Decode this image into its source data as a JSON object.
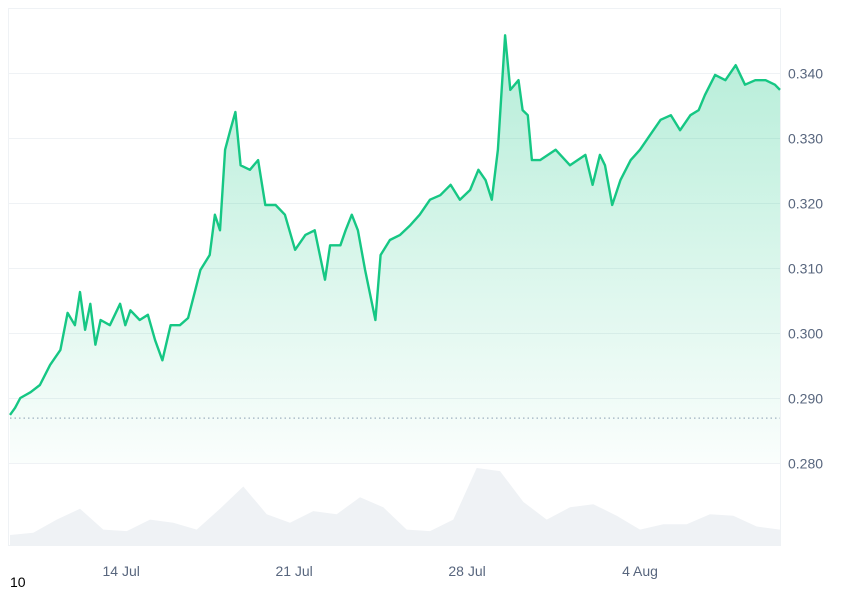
{
  "chart_data": {
    "type": "area",
    "title": "",
    "xlabel": "",
    "ylabel": "",
    "ylim": [
      0.28,
      0.35
    ],
    "xlim": [
      "Jul 9 12:00",
      "Aug 9 16:00"
    ],
    "grid": true,
    "y_ticks": [
      "0.340",
      "0.330",
      "0.320",
      "0.310",
      "0.300",
      "0.290",
      "0.280"
    ],
    "x_ticks": [
      "14 Jul",
      "21 Jul",
      "28 Jul",
      "4 Aug"
    ],
    "baseline_value": 0.2869,
    "colors": {
      "line": "#16c784",
      "fill": "#16c784",
      "volume": "#eff2f5",
      "grid": "#eff2f5",
      "baseline": "#a6b0c3"
    },
    "series": [
      {
        "x": [
          "Jul 9 12:00",
          "Jul 9 17:00",
          "Jul 9 22:00",
          "Jul 10 08:00",
          "Jul 10 17:00",
          "Jul 11 03:00",
          "Jul 11 13:00",
          "Jul 11 20:00",
          "Jul 12 03:00",
          "Jul 12 08:00",
          "Jul 12 13:00",
          "Jul 12 18:00",
          "Jul 12 23:00",
          "Jul 13 04:00",
          "Jul 13 13:00",
          "Jul 13 23:00",
          "Jul 14 04:00",
          "Jul 14 09:00",
          "Jul 14 18:00",
          "Jul 15 02:00",
          "Jul 15 09:00",
          "Jul 15 16:00",
          "Jul 16 00:00",
          "Jul 16 09:00",
          "Jul 16 17:00",
          "Jul 17 00:00",
          "Jul 17 05:00",
          "Jul 17 14:00",
          "Jul 17 19:00",
          "Jul 18 00:00",
          "Jul 18 05:00",
          "Jul 18 10:00",
          "Jul 18 15:00",
          "Jul 18 20:00",
          "Jul 19 05:00",
          "Jul 19 13:00",
          "Jul 19 20:00",
          "Jul 20 06:00",
          "Jul 20 15:00",
          "Jul 21 01:00",
          "Jul 21 11:00",
          "Jul 21 20:00",
          "Jul 22 06:00",
          "Jul 22 11:00",
          "Jul 22 21:00",
          "Jul 23 02:00",
          "Jul 23 08:00",
          "Jul 23 14:00",
          "Jul 23 21:00",
          "Jul 24 07:00",
          "Jul 24 12:00",
          "Jul 24 21:00",
          "Jul 25 07:00",
          "Jul 25 17:00",
          "Jul 26 02:00",
          "Jul 26 12:00",
          "Jul 26 22:00",
          "Jul 27 08:00",
          "Jul 27 17:00",
          "Jul 28 03:00",
          "Jul 28 11:00",
          "Jul 28 18:00",
          "Jul 29 00:00",
          "Jul 29 06:00",
          "Jul 29 13:00",
          "Jul 29 18:00",
          "Jul 30 02:00",
          "Jul 30 06:00",
          "Jul 30 11:00",
          "Jul 30 15:00",
          "Jul 30 23:00",
          "Jul 31 14:00",
          "Aug 1 04:00",
          "Aug 1 19:00",
          "Aug 2 02:00",
          "Aug 2 09:00",
          "Aug 2 14:00",
          "Aug 2 21:00",
          "Aug 3 05:00",
          "Aug 3 15:00",
          "Aug 4 00:00",
          "Aug 4 10:00",
          "Aug 4 20:00",
          "Aug 5 06:00",
          "Aug 5 15:00",
          "Aug 6 01:00",
          "Aug 6 09:00",
          "Aug 6 15:00",
          "Aug 7 01:00",
          "Aug 7 11:00",
          "Aug 7 21:00",
          "Aug 8 06:00",
          "Aug 8 16:00",
          "Aug 9 02:00",
          "Aug 9 11:00",
          "Aug 9 16:00"
        ],
        "y": [
          0.2874,
          0.2885,
          0.29,
          0.2909,
          0.292,
          0.2951,
          0.2974,
          0.3031,
          0.3012,
          0.3063,
          0.3005,
          0.3045,
          0.2982,
          0.302,
          0.3012,
          0.3045,
          0.3012,
          0.3035,
          0.302,
          0.3028,
          0.2989,
          0.2958,
          0.3012,
          0.3012,
          0.3023,
          0.3066,
          0.3097,
          0.312,
          0.3182,
          0.3158,
          0.3282,
          0.3312,
          0.334,
          0.3258,
          0.3251,
          0.3266,
          0.3197,
          0.3197,
          0.3182,
          0.3128,
          0.3151,
          0.3158,
          0.3082,
          0.3135,
          0.3135,
          0.3158,
          0.3182,
          0.3158,
          0.3097,
          0.302,
          0.312,
          0.3143,
          0.3151,
          0.3166,
          0.3182,
          0.3205,
          0.3212,
          0.3228,
          0.3205,
          0.322,
          0.3251,
          0.3235,
          0.3205,
          0.3282,
          0.3458,
          0.3374,
          0.3389,
          0.3343,
          0.3335,
          0.3266,
          0.3266,
          0.3282,
          0.3258,
          0.3274,
          0.3228,
          0.3274,
          0.3258,
          0.3197,
          0.3235,
          0.3266,
          0.3282,
          0.3305,
          0.3328,
          0.3335,
          0.3312,
          0.3335,
          0.3343,
          0.3366,
          0.3397,
          0.3389,
          0.3412,
          0.3382,
          0.3389,
          0.3389,
          0.3382,
          0.3374
        ]
      }
    ],
    "volume_relative": [
      0.13,
      0.16,
      0.33,
      0.47,
      0.2,
      0.18,
      0.33,
      0.29,
      0.2,
      0.47,
      0.76,
      0.4,
      0.29,
      0.44,
      0.4,
      0.62,
      0.49,
      0.2,
      0.18,
      0.33,
      1.0,
      0.96,
      0.56,
      0.33,
      0.49,
      0.53,
      0.38,
      0.2,
      0.27,
      0.27,
      0.4,
      0.38,
      0.24,
      0.2
    ]
  },
  "footer": {
    "corner_label": "10"
  }
}
